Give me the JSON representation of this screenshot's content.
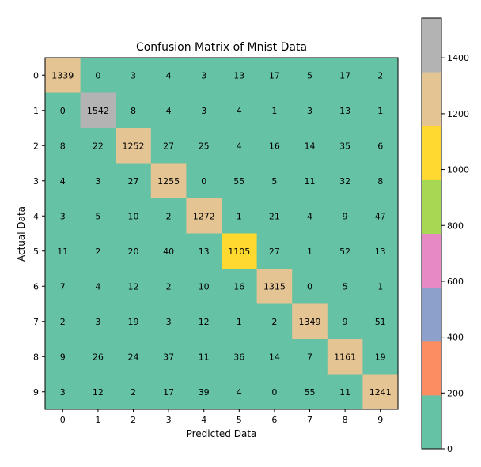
{
  "chart_data": {
    "type": "heatmap",
    "title": "Confusion Matrix of Mnist Data",
    "xlabel": "Predicted Data",
    "ylabel": "Actual Data",
    "x_categories": [
      "0",
      "1",
      "2",
      "3",
      "4",
      "5",
      "6",
      "7",
      "8",
      "9"
    ],
    "y_categories": [
      "0",
      "1",
      "2",
      "3",
      "4",
      "5",
      "6",
      "7",
      "8",
      "9"
    ],
    "matrix": [
      [
        1339,
        0,
        3,
        4,
        3,
        13,
        17,
        5,
        17,
        2
      ],
      [
        0,
        1542,
        8,
        4,
        3,
        4,
        1,
        3,
        13,
        1
      ],
      [
        8,
        22,
        1252,
        27,
        25,
        4,
        16,
        14,
        35,
        6
      ],
      [
        4,
        3,
        27,
        1255,
        0,
        55,
        5,
        11,
        32,
        8
      ],
      [
        3,
        5,
        10,
        2,
        1272,
        1,
        21,
        4,
        9,
        47
      ],
      [
        11,
        2,
        20,
        40,
        13,
        1105,
        27,
        1,
        52,
        13
      ],
      [
        7,
        4,
        12,
        2,
        10,
        16,
        1315,
        0,
        5,
        1
      ],
      [
        2,
        3,
        19,
        3,
        12,
        1,
        2,
        1349,
        9,
        51
      ],
      [
        9,
        26,
        24,
        37,
        11,
        36,
        14,
        7,
        1161,
        19
      ],
      [
        3,
        12,
        2,
        17,
        39,
        4,
        0,
        55,
        11,
        1241
      ]
    ],
    "colormap": "Set2",
    "color_range": [
      0,
      1542
    ],
    "colorbar": {
      "ticks": [
        0,
        200,
        400,
        600,
        800,
        1000,
        1200,
        1400
      ],
      "tick_labels": [
        "0",
        "200",
        "400",
        "600",
        "800",
        "1000",
        "1200",
        "1400"
      ],
      "colors": [
        "#66c2a5",
        "#fc8d62",
        "#8da0cb",
        "#e78ac3",
        "#a6d854",
        "#ffd92f",
        "#e5c494",
        "#b3b3b3"
      ]
    }
  }
}
